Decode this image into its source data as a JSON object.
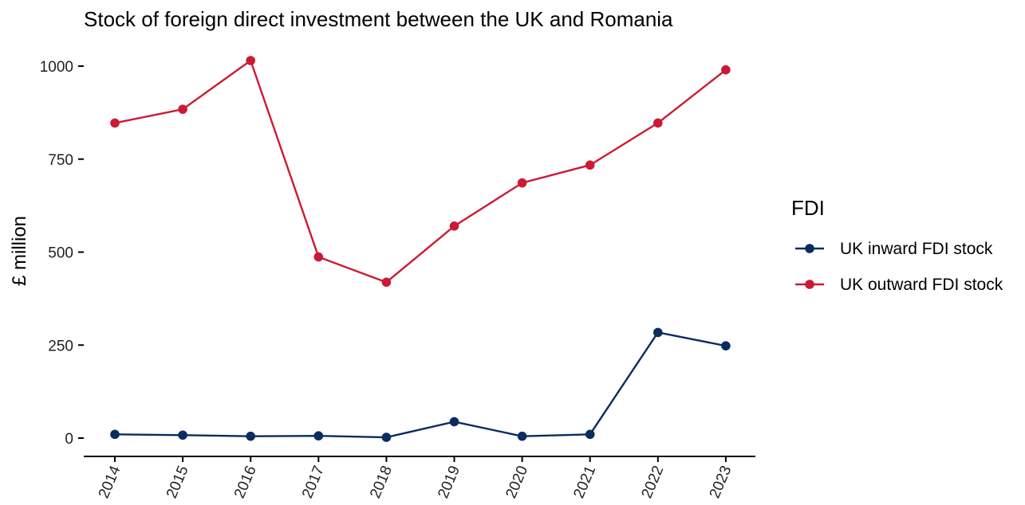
{
  "chart_data": {
    "type": "line",
    "title": "Stock of foreign direct investment between the UK and Romania",
    "xlabel": "",
    "ylabel": "£ million",
    "categories": [
      "2014",
      "2015",
      "2016",
      "2017",
      "2018",
      "2019",
      "2020",
      "2021",
      "2022",
      "2023"
    ],
    "yticks": [
      0,
      250,
      500,
      750,
      1000
    ],
    "ytick_labels": [
      "0",
      "250",
      "500",
      "750",
      "1000"
    ],
    "ylim": [
      -50,
      1030
    ],
    "grid": false,
    "legend": {
      "title": "FDI",
      "position": "right"
    },
    "series": [
      {
        "name": "UK inward FDI stock",
        "color": "#0b2c5f",
        "values": [
          10,
          8,
          5,
          6,
          2,
          44,
          5,
          10,
          284,
          248
        ]
      },
      {
        "name": "UK outward FDI stock",
        "color": "#cc1a35",
        "values": [
          847,
          884,
          1015,
          487,
          419,
          570,
          686,
          734,
          847,
          990
        ]
      }
    ]
  }
}
